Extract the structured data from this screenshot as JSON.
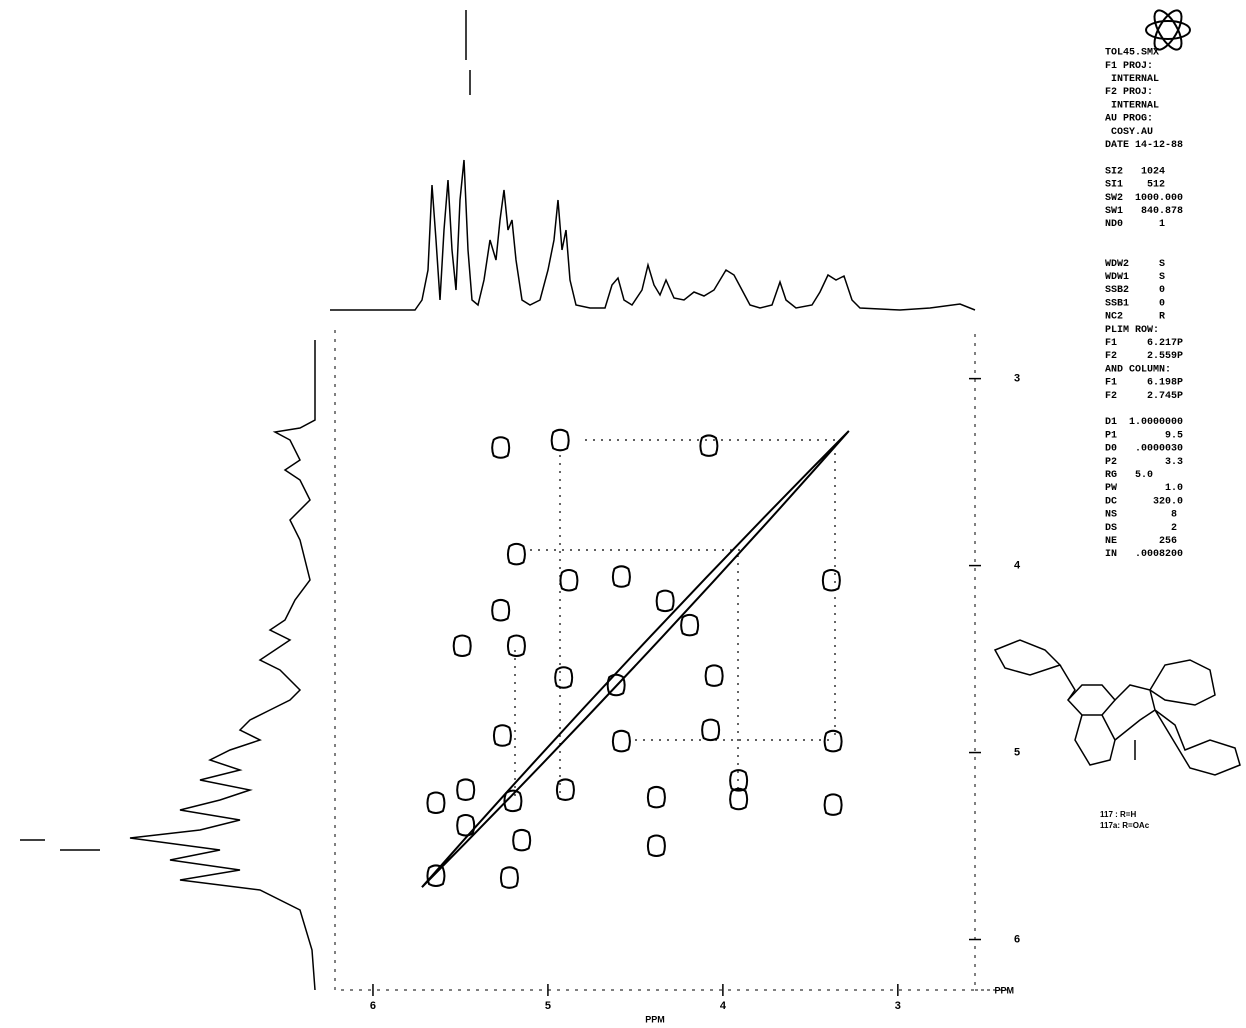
{
  "chart_data": {
    "type": "scatter",
    "xlabel": "PPM",
    "xlim": [
      6.217,
      2.559
    ],
    "xticks": [
      6,
      5,
      4,
      3
    ],
    "ylim": [
      2.74,
      6.27
    ],
    "yticks": [
      3,
      4,
      5,
      6
    ],
    "x": [
      5.27,
      4.93,
      4.08,
      5.18,
      4.88,
      4.58,
      3.38,
      4.33,
      4.19,
      5.27,
      5.49,
      5.18,
      4.91,
      4.61,
      4.05,
      5.26,
      4.58,
      4.07,
      3.37,
      4.9,
      4.38,
      3.91,
      3.91,
      3.37,
      5.64,
      5.47,
      5.2,
      5.47,
      5.15,
      4.38,
      5.22,
      5.64
    ],
    "values": [
      3.37,
      3.33,
      3.36,
      3.94,
      4.08,
      4.06,
      4.08,
      4.19,
      4.32,
      4.24,
      4.43,
      4.43,
      4.6,
      4.64,
      4.59,
      4.91,
      4.94,
      4.88,
      4.94,
      5.2,
      5.24,
      5.15,
      5.25,
      5.28,
      5.27,
      5.2,
      5.26,
      5.39,
      5.47,
      5.5,
      5.67,
      5.66
    ],
    "diagonal": [
      5.72,
      3.28
    ],
    "annotations": [
      "TOL45.SMX",
      "F1 PROJ:",
      " INTERNAL",
      "F2 PROJ:",
      " INTERNAL",
      "AU PROG:",
      " COSY.AU",
      "DATE 14-12-88",
      "",
      "SI2   1024",
      "SI1    512",
      "SW2  1000.000",
      "SW1   840.878",
      "ND0      1",
      "",
      "",
      "WDW2     S",
      "WDW1     S",
      "SSB2     0",
      "SSB1     0",
      "NC2      R",
      "PLIM ROW:",
      "F1     6.217P",
      "F2     2.559P",
      "AND COLUMN:",
      "F1     6.198P",
      "F2     2.745P",
      "",
      "D1  1.0000000",
      "P1        9.5",
      "D0   .0000030",
      "P2        3.3",
      "RG   5.0",
      "PW        1.0",
      "DC      320.0",
      "NS         8",
      "DS         2",
      "NE       256",
      "IN   .0008200"
    ],
    "compound_labels": [
      "117 : R=H",
      "117a: R=OAc"
    ]
  }
}
